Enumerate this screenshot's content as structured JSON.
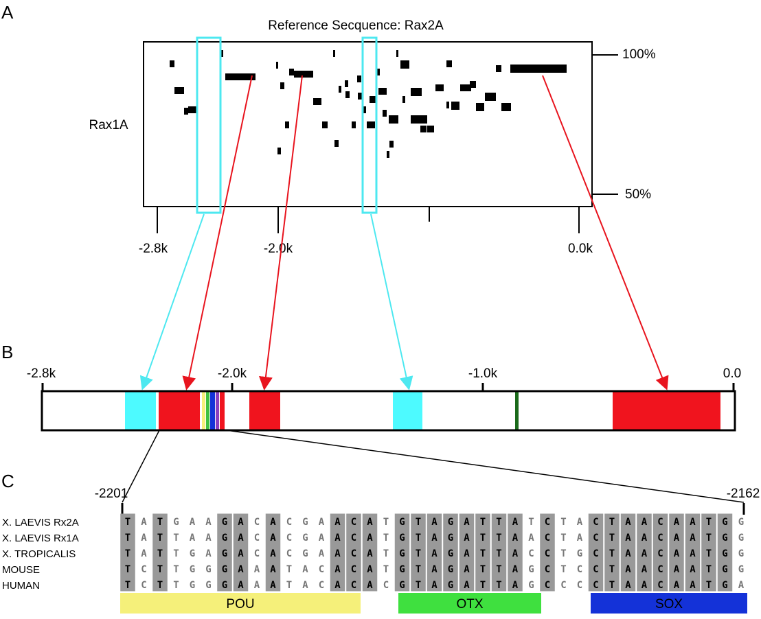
{
  "panels": {
    "a": "A",
    "b": "B",
    "c": "C"
  },
  "plot": {
    "title": "Reference Secquence: Rax2A",
    "ylabel": "Rax1A",
    "yticks": [
      "100%",
      "50%"
    ],
    "xticks": [
      "-2.8k",
      "-2.0k",
      "0.0k"
    ]
  },
  "map": {
    "ticks": [
      "-2.8k",
      "-2.0k",
      "-1.0k",
      "0.0"
    ]
  },
  "alignment": {
    "start": "-2201",
    "end": "-2162",
    "rows": [
      {
        "name": "X. LAEVIS Rx2A",
        "sequence": "TATGAAGACACGAACATGTAGATTATCTACTAACAATGG"
      },
      {
        "name": "X. LAEVIS Rx1A",
        "sequence": "TATTAAGACACGAACATGTAGATTAACTACTAACAATGG"
      },
      {
        "name": "X. TROPICALIS",
        "sequence": "TATTGAGACACGAACATGTAGATTACCTGCTAACAATGG"
      },
      {
        "name": "MOUSE",
        "sequence": "TCTTGGGAAATACACATGTAGATTAGCTCCTAACAATGG"
      },
      {
        "name": "HUMAN",
        "sequence": "TCTTGGGAAATACACACGTAGATTAGCCCCTAACAATGA"
      }
    ],
    "motifs": [
      "POU",
      "OTX",
      "SOX"
    ]
  }
}
